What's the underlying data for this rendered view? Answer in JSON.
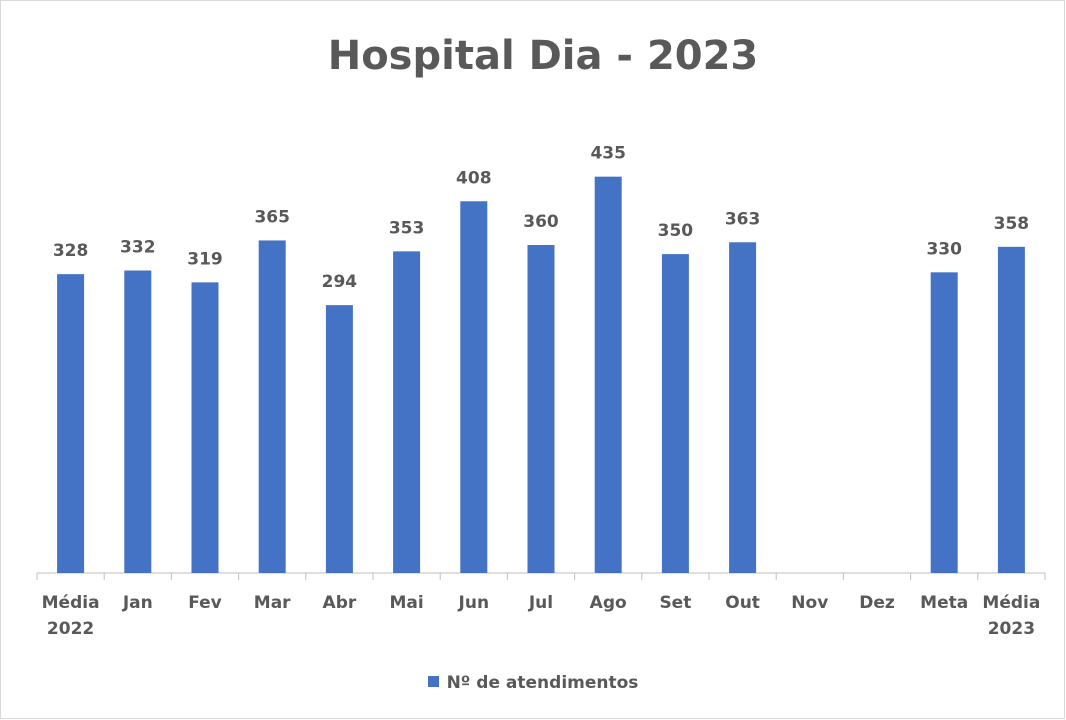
{
  "chart_data": {
    "type": "bar",
    "title": "Hospital Dia - 2023",
    "categories": [
      "Média 2022",
      "Jan",
      "Fev",
      "Mar",
      "Abr",
      "Mai",
      "Jun",
      "Jul",
      "Ago",
      "Set",
      "Out",
      "Nov",
      "Dez",
      "Meta",
      "Média 2023"
    ],
    "series": [
      {
        "name": "Nº de atendimentos",
        "color": "#4472c4",
        "values": [
          328,
          332,
          319,
          365,
          294,
          353,
          408,
          360,
          435,
          350,
          363,
          null,
          null,
          330,
          358
        ]
      }
    ],
    "ylim": [
      0,
      450
    ]
  }
}
